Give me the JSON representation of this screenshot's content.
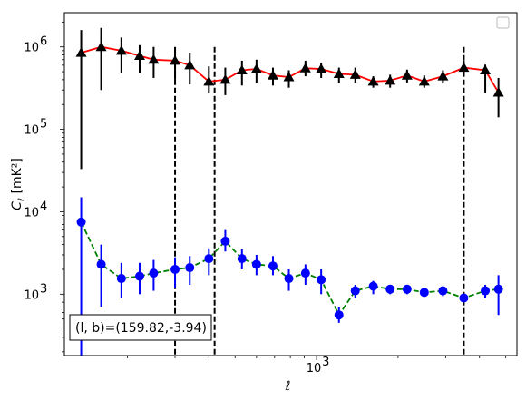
{
  "chart_data": {
    "type": "line",
    "xscale": "log",
    "yscale": "log",
    "xlim": [
      117,
      5500
    ],
    "ylim": [
      180,
      2600000
    ],
    "xlabel": "ℓ",
    "ylabel_main": "C",
    "ylabel_sub": "ℓ",
    "ylabel_unit": "[mK²]",
    "x_tick_label": "10",
    "x_tick_exp": "3",
    "y_tick_labels": [
      {
        "value": 1000,
        "base": "10",
        "exp": "3"
      },
      {
        "value": 10000,
        "base": "10",
        "exp": "4"
      },
      {
        "value": 100000,
        "base": "10",
        "exp": "5"
      },
      {
        "value": 1000000,
        "base": "10",
        "exp": "6"
      }
    ],
    "annotation": "(l, b)=(159.82,-3.94)",
    "annotation_prefix_italic": [
      "l",
      "b"
    ],
    "legend": "top-right",
    "vlines_x": [
      300,
      420,
      3500
    ],
    "series": [
      {
        "marker": "triangle",
        "color": "#000000",
        "line_color": "#ff0000",
        "line_style": "solid",
        "x": [
          135,
          160,
          190,
          222,
          250,
          300,
          340,
          400,
          460,
          530,
          600,
          690,
          790,
          910,
          1040,
          1210,
          1390,
          1620,
          1870,
          2160,
          2500,
          2930,
          3500,
          4200,
          4700
        ],
        "y": [
          850000,
          1000000,
          900000,
          780000,
          700000,
          680000,
          600000,
          380000,
          400000,
          520000,
          540000,
          450000,
          430000,
          550000,
          540000,
          470000,
          460000,
          380000,
          390000,
          450000,
          380000,
          440000,
          560000,
          520000,
          280000
        ],
        "yerr_low": [
          33000,
          300000,
          480000,
          480000,
          420000,
          400000,
          350000,
          280000,
          260000,
          340000,
          360000,
          340000,
          320000,
          440000,
          420000,
          360000,
          370000,
          320000,
          320000,
          370000,
          320000,
          360000,
          450000,
          280000,
          140000
        ],
        "yerr_high": [
          1600000,
          1700000,
          1300000,
          1050000,
          1000000,
          980000,
          850000,
          580000,
          560000,
          680000,
          700000,
          560000,
          520000,
          680000,
          640000,
          560000,
          560000,
          440000,
          460000,
          530000,
          450000,
          520000,
          680000,
          610000,
          420000
        ]
      },
      {
        "marker": "circle",
        "color": "#0000ff",
        "line_color": "#008000",
        "line_style": "dashed",
        "x": [
          135,
          160,
          190,
          222,
          250,
          300,
          340,
          400,
          460,
          530,
          600,
          690,
          790,
          910,
          1040,
          1210,
          1390,
          1620,
          1870,
          2160,
          2500,
          2930,
          3500,
          4200,
          4700
        ],
        "y": [
          7500,
          2300,
          1550,
          1650,
          1800,
          2000,
          2100,
          2700,
          4400,
          2700,
          2300,
          2200,
          1550,
          1800,
          1500,
          560,
          1100,
          1250,
          1150,
          1150,
          1050,
          1100,
          900,
          1100,
          1150
        ],
        "yerr_low": [
          180,
          700,
          900,
          1000,
          1100,
          1200,
          1300,
          1700,
          3300,
          2000,
          1700,
          1700,
          1100,
          1300,
          1000,
          450,
          900,
          1000,
          1000,
          1000,
          950,
          950,
          800,
          900,
          560
        ],
        "yerr_high": [
          15000,
          4000,
          2400,
          2400,
          2600,
          2800,
          2900,
          3600,
          6000,
          3500,
          3000,
          2900,
          2000,
          2300,
          2000,
          700,
          1300,
          1450,
          1300,
          1300,
          1180,
          1250,
          1000,
          1300,
          1700
        ]
      }
    ]
  }
}
